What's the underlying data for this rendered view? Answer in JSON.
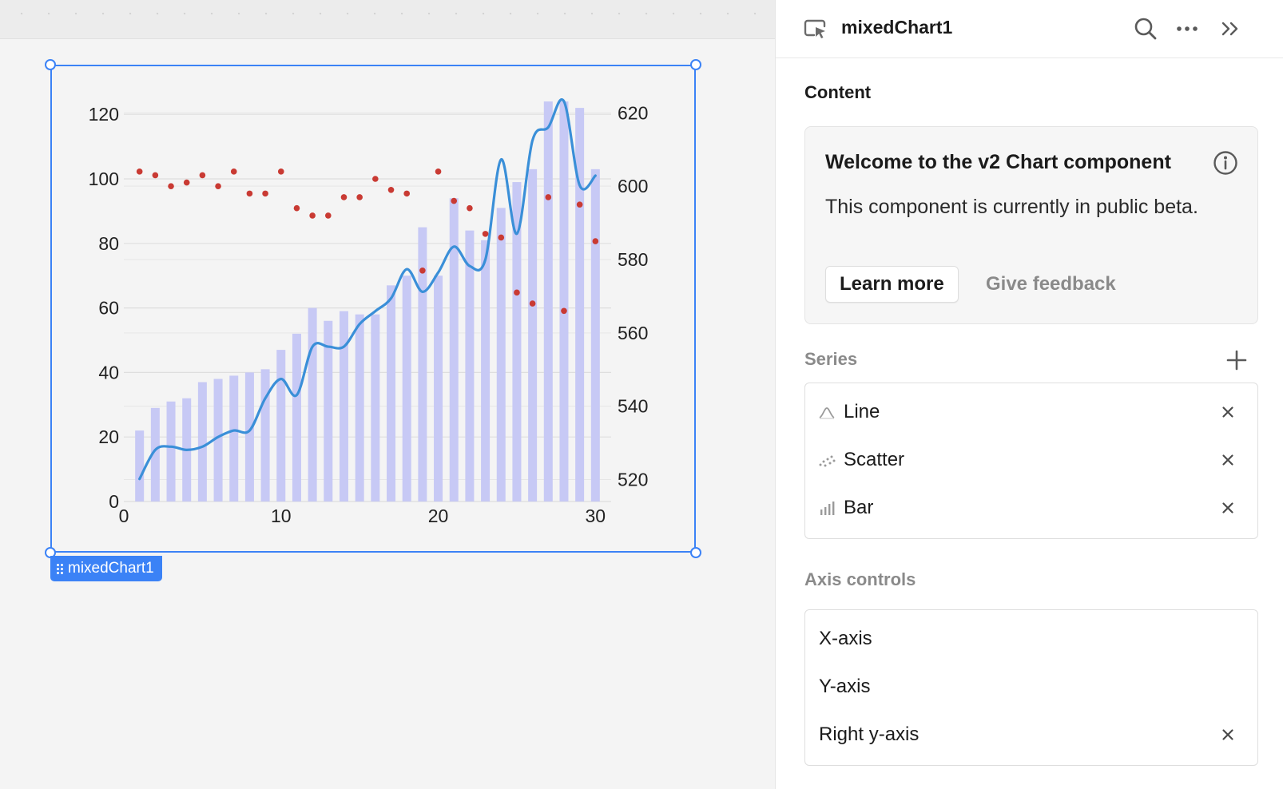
{
  "canvas": {
    "component_tag": "mixedChart1"
  },
  "panel": {
    "title": "mixedChart1",
    "content_label": "Content",
    "beta_card": {
      "title": "Welcome to the v2 Chart component",
      "body": "This component is currently in public beta.",
      "learn_more": "Learn more",
      "give_feedback": "Give feedback"
    },
    "series_label": "Series",
    "series": [
      {
        "label": "Line",
        "icon": "line-chart-icon"
      },
      {
        "label": "Scatter",
        "icon": "scatter-chart-icon"
      },
      {
        "label": "Bar",
        "icon": "bar-chart-icon"
      }
    ],
    "axis_label": "Axis controls",
    "axes": [
      {
        "label": "X-axis",
        "removable": false
      },
      {
        "label": "Y-axis",
        "removable": false
      },
      {
        "label": "Right y-axis",
        "removable": true
      }
    ]
  },
  "chart_data": {
    "type": "mixed",
    "x": [
      1,
      2,
      3,
      4,
      5,
      6,
      7,
      8,
      9,
      10,
      11,
      12,
      13,
      14,
      15,
      16,
      17,
      18,
      19,
      20,
      21,
      22,
      23,
      24,
      25,
      26,
      27,
      28,
      29,
      30
    ],
    "xlim": [
      0,
      31
    ],
    "x_ticks": [
      0,
      10,
      20,
      30
    ],
    "ylim": [
      0,
      125
    ],
    "y_ticks": [
      0,
      20,
      40,
      60,
      80,
      100,
      120
    ],
    "y2lim": [
      514,
      624
    ],
    "y2_ticks": [
      520,
      540,
      560,
      580,
      600,
      620
    ],
    "grid": true,
    "legend": "none",
    "series": [
      {
        "type": "bar",
        "axis": "left",
        "color": "#c7c9f5",
        "values": [
          22,
          29,
          31,
          32,
          37,
          38,
          39,
          40,
          41,
          47,
          52,
          60,
          56,
          59,
          58,
          58,
          67,
          70,
          85,
          70,
          94,
          84,
          81,
          91,
          99,
          103,
          124,
          124,
          122,
          103
        ]
      },
      {
        "type": "line",
        "axis": "left",
        "color": "#3a8fd8",
        "values": [
          7,
          16,
          17,
          16,
          17,
          20,
          22,
          22,
          32,
          38,
          33,
          48,
          48,
          48,
          55,
          59,
          63,
          72,
          65,
          71,
          79,
          73,
          75,
          106,
          83,
          112,
          116,
          124,
          98,
          101
        ]
      },
      {
        "type": "scatter",
        "axis": "right",
        "color": "#c93a33",
        "values": [
          604,
          603,
          600,
          601,
          603,
          600,
          604,
          598,
          598,
          604,
          594,
          592,
          592,
          597,
          597,
          602,
          599,
          598,
          577,
          604,
          596,
          594,
          587,
          586,
          571,
          568,
          597,
          566,
          595,
          585
        ]
      }
    ]
  }
}
